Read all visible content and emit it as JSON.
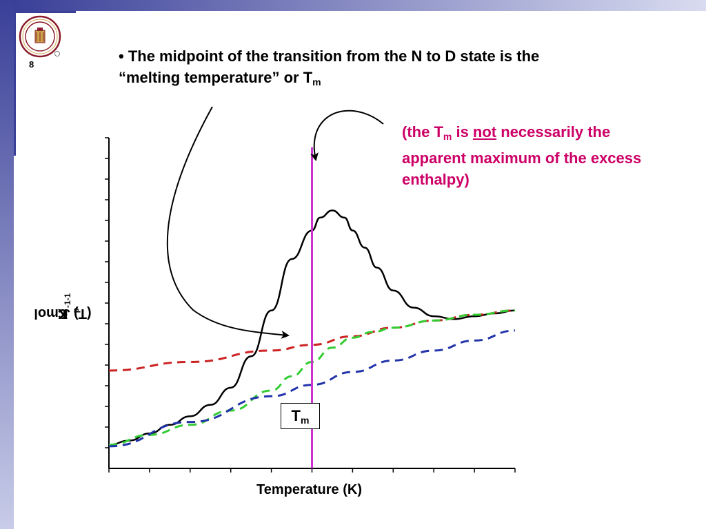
{
  "slide": {
    "number": "8",
    "colors": {
      "band_top": "#3a3f98",
      "band_bottom": "#c8cce8",
      "accent_note": "#cc0066"
    }
  },
  "bullet": {
    "marker": "•",
    "line1": "The midpoint of the transition from the N to D state is the",
    "line2_prefix": "“melting temperature” or T",
    "line2_sub": "m"
  },
  "note": {
    "part1": "(the T",
    "sub": "m",
    "part2": " is ",
    "emph": "not",
    "part3": " necessarily the apparent maximum of the excess enthalpy)"
  },
  "chart_data": {
    "type": "line",
    "xlabel": "Temperature (K)",
    "ylabel_prefix": "C",
    "ylabel_sub": "p",
    "ylabel_mid": "(T) J mol",
    "ylabel_sup1": "-1",
    "ylabel_mid2": " K",
    "ylabel_sup2": "-1",
    "tm_label": "T",
    "tm_label_sub": "m",
    "x_range": [
      0,
      10
    ],
    "y_range": [
      0,
      10
    ],
    "x_ticks": 11,
    "y_ticks": 16,
    "tm_x": 5.0,
    "series": [
      {
        "color": "#000000",
        "style": "solid",
        "x": [
          0,
          0.5,
          1,
          1.5,
          2,
          2.5,
          3,
          3.5,
          4,
          4.5,
          5,
          5.2,
          5.5,
          5.8,
          6,
          6.3,
          6.6,
          7,
          7.5,
          8,
          8.5,
          9,
          9.5,
          10
        ],
        "y": [
          0.1,
          0.25,
          0.5,
          0.8,
          1.1,
          1.5,
          2.1,
          3.2,
          4.8,
          6.6,
          7.6,
          8.05,
          8.3,
          8.05,
          7.6,
          7.0,
          6.3,
          5.5,
          4.9,
          4.6,
          4.5,
          4.6,
          4.7,
          4.8
        ]
      },
      {
        "color": "#cc2222",
        "style": "dashed",
        "x": [
          0,
          2,
          4,
          5,
          6,
          7,
          8,
          9,
          10
        ],
        "y": [
          2.7,
          3.0,
          3.4,
          3.6,
          3.9,
          4.2,
          4.45,
          4.65,
          4.8
        ]
      },
      {
        "color": "#33cc33",
        "style": "dashed",
        "x": [
          0,
          1,
          2,
          3,
          4,
          4.5,
          5,
          5.5,
          6,
          6.5,
          7,
          8,
          9,
          10
        ],
        "y": [
          0.1,
          0.45,
          0.8,
          1.3,
          2.0,
          2.5,
          3.0,
          3.5,
          3.85,
          4.05,
          4.2,
          4.45,
          4.65,
          4.8
        ]
      },
      {
        "color": "#2233aa",
        "style": "dashed",
        "x": [
          0,
          2,
          4,
          5,
          6,
          7,
          8,
          9,
          10
        ],
        "y": [
          0.05,
          0.9,
          1.8,
          2.2,
          2.65,
          3.05,
          3.4,
          3.75,
          4.1
        ]
      }
    ]
  }
}
